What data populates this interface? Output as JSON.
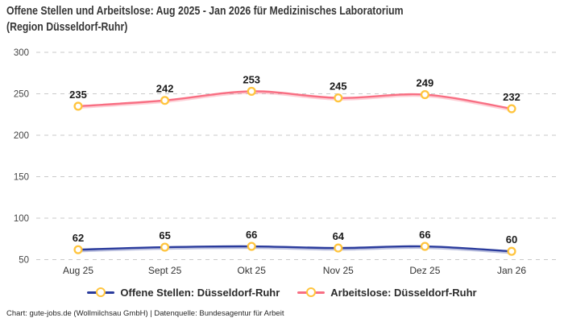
{
  "header": {
    "title_line1": "Offene Stellen und Arbeitslose: Aug 2025 - Jan 2026 für Medizinisches Laboratorium",
    "title_line2": "(Region Düsseldorf-Ruhr)"
  },
  "chart_data": {
    "type": "line",
    "title": "Offene Stellen und Arbeitslose: Aug 2025 - Jan 2026 für Medizinisches Laboratorium (Region Düsseldorf-Ruhr)",
    "categories": [
      "Aug 25",
      "Sept 25",
      "Okt 25",
      "Nov 25",
      "Dez 25",
      "Jan 26"
    ],
    "series": [
      {
        "name": "Offene Stellen: Düsseldorf-Ruhr",
        "values": [
          62,
          65,
          66,
          64,
          66,
          60
        ],
        "color": "#2a3b9c"
      },
      {
        "name": "Arbeitslose: Düsseldorf-Ruhr",
        "values": [
          235,
          242,
          253,
          245,
          249,
          232
        ],
        "color": "#f86e82"
      }
    ],
    "marker": {
      "stroke": "#ffc43d",
      "fill": "#ffffff"
    },
    "point_labels_shown": true,
    "xlabel": "",
    "ylabel": "",
    "ylim": [
      50,
      300
    ],
    "yticks": [
      50,
      100,
      150,
      200,
      250,
      300
    ],
    "grid": "horizontal dashed",
    "grid_color": "#c9c9c9",
    "legend_position": "bottom"
  },
  "footer": {
    "text": "Chart: gute-jobs.de (Wollmilchsau GmbH) | Datenquelle: Bundesagentur für Arbeit"
  }
}
